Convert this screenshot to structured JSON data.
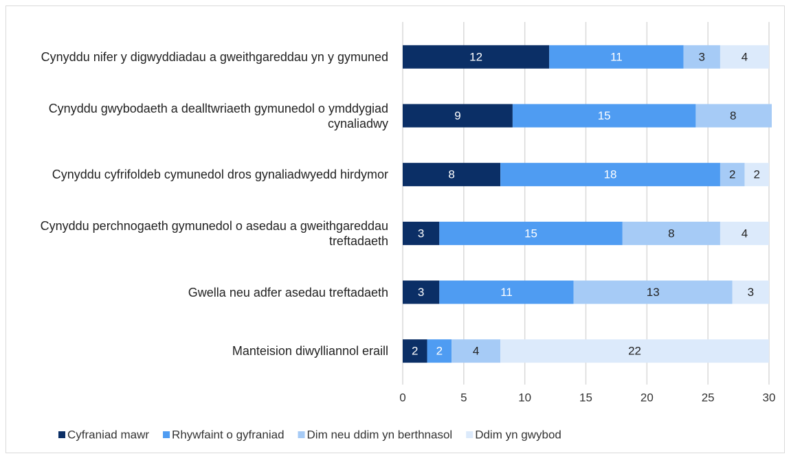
{
  "chart_data": {
    "type": "stacked_barh",
    "categories": [
      "Cynyddu nifer y digwyddiadau a gweithgareddau yn y gymuned",
      "Cynyddu gwybodaeth a dealltwriaeth gymunedol o ymddygiad cynaliadwy",
      "Cynyddu cyfrifoldeb cymunedol dros gynaliadwyedd hirdymor",
      "Cynyddu perchnogaeth gymunedol o asedau a gweithgareddau treftadaeth",
      "Gwella neu adfer asedau treftadaeth",
      "Manteision diwylliannol eraill"
    ],
    "series": [
      {
        "name": "Cyfraniad mawr",
        "color": "#0b2f66",
        "values": [
          12,
          9,
          8,
          3,
          3,
          2
        ]
      },
      {
        "name": "Rhywfaint o gyfraniad",
        "color": "#4f9cf2",
        "values": [
          11,
          15,
          18,
          15,
          11,
          2
        ]
      },
      {
        "name": "Dim neu ddim yn berthnasol",
        "color": "#a6cbf6",
        "values": [
          3,
          8,
          2,
          8,
          13,
          4
        ]
      },
      {
        "name": "Ddim yn gwybod",
        "color": "#dceafb",
        "values": [
          4,
          null,
          2,
          4,
          3,
          22
        ]
      }
    ],
    "xlim": [
      0,
      30
    ],
    "xticks": [
      0,
      5,
      10,
      15,
      20,
      25,
      30
    ],
    "grid": true,
    "legend": "bottom"
  }
}
